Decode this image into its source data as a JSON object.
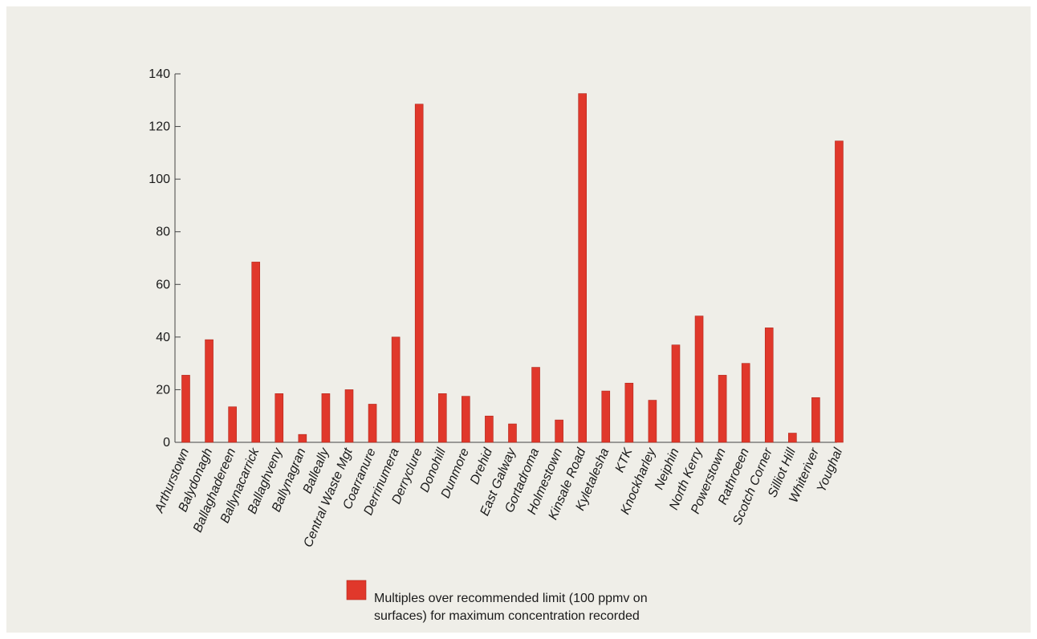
{
  "chart_data": {
    "type": "bar",
    "categories": [
      "Arthurstown",
      "Balydonagh",
      "Ballaghadereen",
      "Ballynacarrick",
      "Ballaghveny",
      "Ballynagran",
      "Balleally",
      "Central Waste Mgt",
      "Coarranure",
      "Derrinumera",
      "Derryclure",
      "Donohill",
      "Dunmore",
      "Drehid",
      "East Galway",
      "Gortadroma",
      "Holmestown",
      "Kinsale Road",
      "Kyletalesha",
      "KTK",
      "Knockharley",
      "Neiphin",
      "North Kerry",
      "Powerstown",
      "Rathroeen",
      "Scotch Corner",
      "Silliot Hill",
      "Whiteriver",
      "Youghal"
    ],
    "series": [
      {
        "name": "Multiples over recommended limit (100 ppmv on surfaces) for maximum concentration recorded",
        "values": [
          25.5,
          39,
          13.5,
          68.5,
          18.5,
          3,
          18.5,
          20,
          14.5,
          40,
          128.5,
          18.5,
          17.5,
          10,
          7,
          28.5,
          8.5,
          132.5,
          19.5,
          22.5,
          16,
          37,
          48,
          25.5,
          30,
          43.5,
          3.5,
          17,
          114.5
        ]
      }
    ],
    "yticks": [
      0,
      20,
      40,
      60,
      80,
      100,
      120,
      140
    ],
    "ylim": [
      0,
      140
    ],
    "title": "",
    "xlabel": "",
    "ylabel": "",
    "legend_position": "bottom",
    "colors": {
      "bar": "#e0382b",
      "axis": "#444444"
    }
  },
  "legend": {
    "line1": "Multiples over recommended limit (100 ppmv on",
    "line2": "surfaces) for maximum concentration recorded"
  }
}
